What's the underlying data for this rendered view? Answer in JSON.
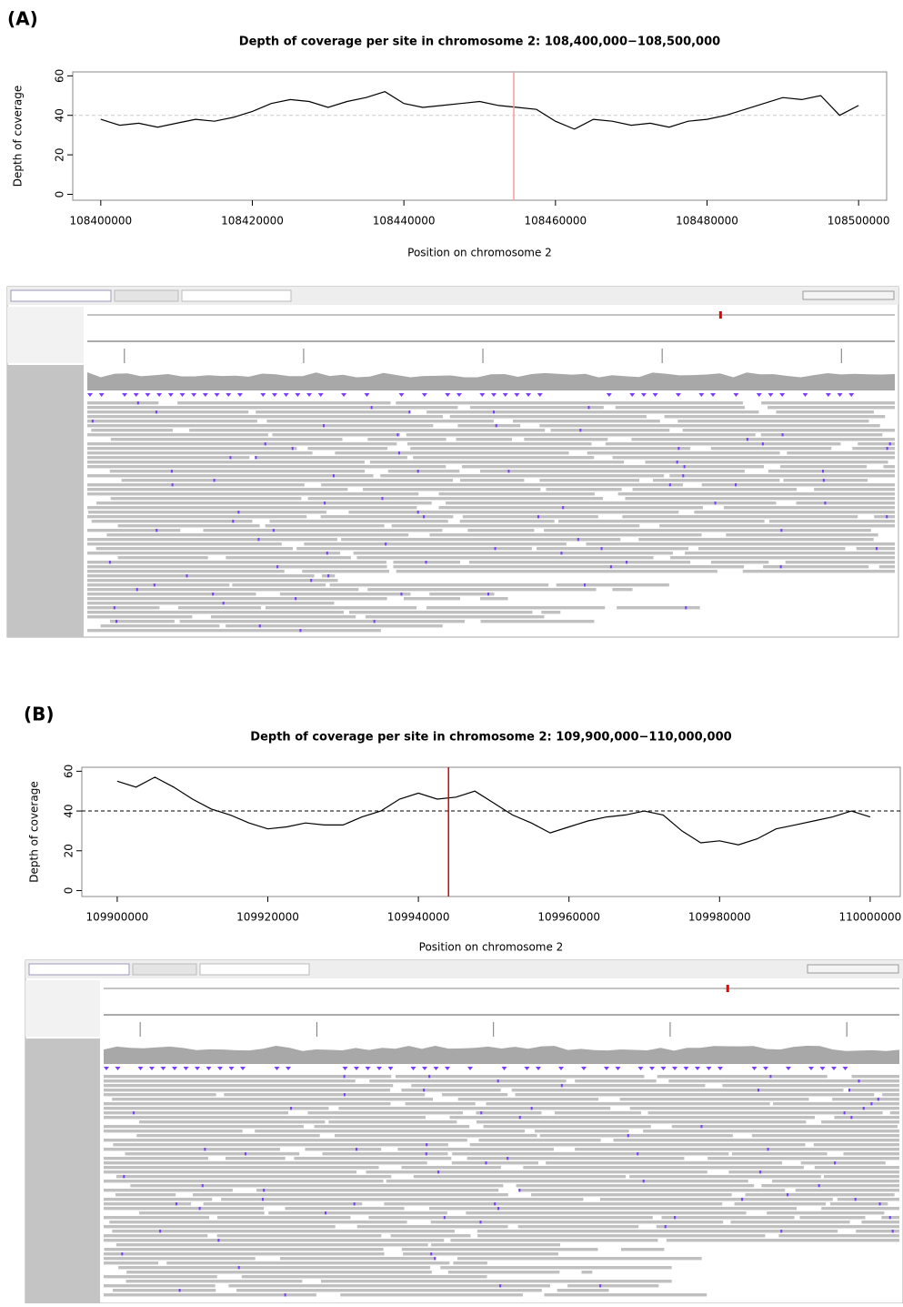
{
  "panel_labels": [
    "(A)",
    "(B)"
  ],
  "chart_data": [
    {
      "type": "line",
      "title": "Depth of coverage per site in chromosome 2: 108,400,000−108,500,000",
      "x_label": "Position on chromosome 2",
      "y_label": "Depth of coverage",
      "x": [
        108400000,
        108402500,
        108405000,
        108407500,
        108410000,
        108412500,
        108415000,
        108417500,
        108420000,
        108422500,
        108425000,
        108427500,
        108430000,
        108432500,
        108435000,
        108437500,
        108440000,
        108442500,
        108445000,
        108447500,
        108450000,
        108452500,
        108455000,
        108457500,
        108460000,
        108462500,
        108465000,
        108467500,
        108470000,
        108472500,
        108475000,
        108477500,
        108480000,
        108482500,
        108485000,
        108487500,
        108490000,
        108492500,
        108495000,
        108497500,
        108500000
      ],
      "values": [
        38,
        35,
        36,
        34,
        36,
        38,
        37,
        39,
        42,
        46,
        48,
        47,
        44,
        47,
        49,
        52,
        46,
        44,
        45,
        46,
        47,
        45,
        44,
        43,
        37,
        33,
        38,
        37,
        35,
        36,
        34,
        37,
        38,
        40,
        43,
        46,
        49,
        48,
        50,
        40,
        45
      ],
      "color": "#000000",
      "xlim": [
        108396300,
        108503700
      ],
      "ylim": [
        -3,
        62
      ],
      "xticks": [
        108400000,
        108420000,
        108440000,
        108460000,
        108480000,
        108500000
      ],
      "yticks": [
        0,
        20,
        40,
        60
      ],
      "hline": 40,
      "hline_color": "#cccccc",
      "vline": 108454500,
      "vline_color": "#ff9999"
    },
    {
      "type": "line",
      "title": "Depth of coverage per site in chromosome 2: 109,900,000−110,000,000",
      "x_label": "Position on chromosome 2",
      "y_label": "Depth of coverage",
      "x": [
        109900000,
        109902500,
        109905000,
        109907500,
        109910000,
        109912500,
        109915000,
        109917500,
        109920000,
        109922500,
        109925000,
        109927500,
        109930000,
        109932500,
        109935000,
        109937500,
        109940000,
        109942500,
        109945000,
        109947500,
        109950000,
        109952500,
        109955000,
        109957500,
        109960000,
        109962500,
        109965000,
        109967500,
        109970000,
        109972500,
        109975000,
        109977500,
        109980000,
        109982500,
        109985000,
        109987500,
        109990000,
        109992500,
        109995000,
        109997500,
        110000000
      ],
      "values": [
        55,
        52,
        57,
        52,
        46,
        41,
        38,
        34,
        31,
        32,
        34,
        33,
        33,
        37,
        40,
        46,
        49,
        46,
        47,
        50,
        44,
        38,
        34,
        29,
        32,
        35,
        37,
        38,
        40,
        38,
        30,
        24,
        25,
        23,
        26,
        31,
        33,
        35,
        37,
        40,
        37
      ],
      "color": "#000000",
      "xlim": [
        109895300,
        110004000
      ],
      "ylim": [
        -3,
        62
      ],
      "xticks": [
        109900000,
        109920000,
        109940000,
        109960000,
        109980000,
        110000000
      ],
      "yticks": [
        0,
        20,
        40,
        60
      ],
      "hline": 40,
      "hline_color": "#000000",
      "vline": 109944000,
      "vline_color": "#dd0000"
    }
  ]
}
